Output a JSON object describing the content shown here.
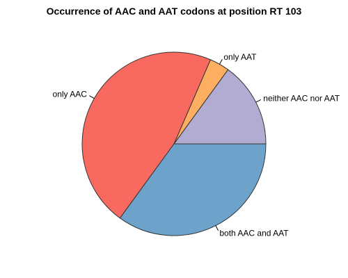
{
  "chart_data": {
    "type": "pie",
    "title": "Occurrence of AAC and AAT codons at position RT 103",
    "slices": [
      {
        "label": "neither AAC nor AAT",
        "value": 15,
        "color": "#b2abd2"
      },
      {
        "label": "only AAT",
        "value": 3.5,
        "color": "#fdae61"
      },
      {
        "label": "only AAC",
        "value": 46.5,
        "color": "#f8695f"
      },
      {
        "label": "both AAC and AAT",
        "value": 35,
        "color": "#6da3cb"
      }
    ],
    "start_angle_deg": 0,
    "direction": "counterclockwise",
    "legend": "none"
  }
}
